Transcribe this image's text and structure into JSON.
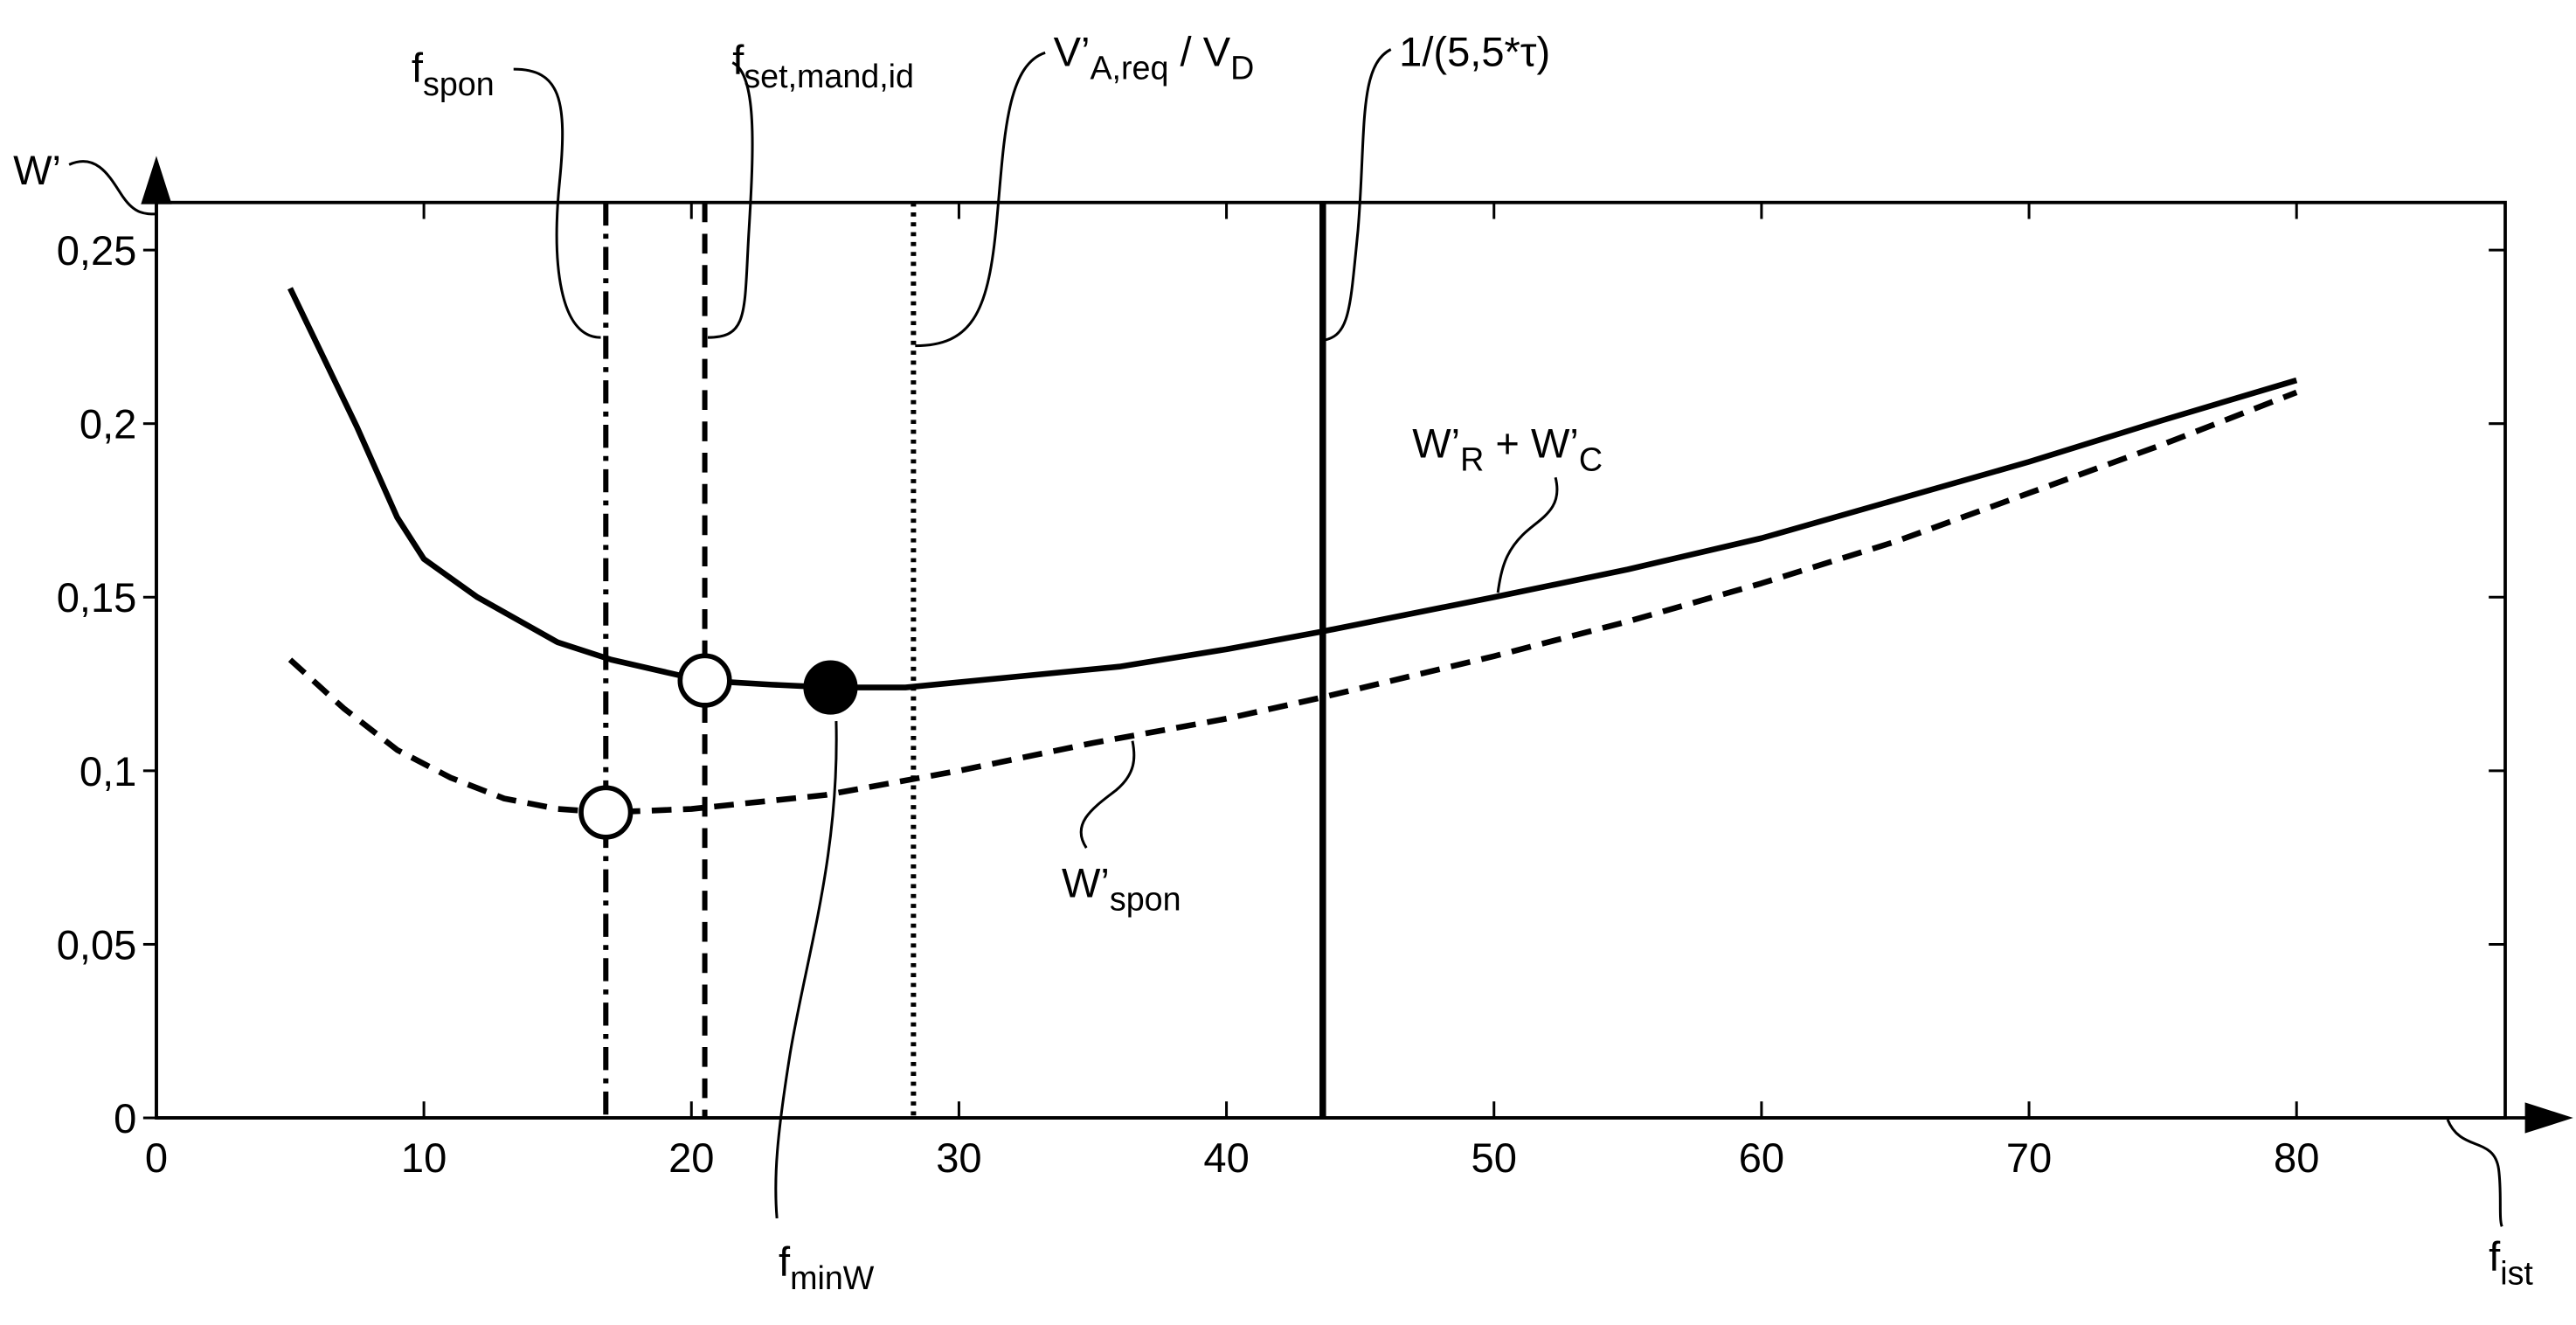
{
  "chart_data": {
    "type": "line",
    "xlim": [
      0,
      87.8
    ],
    "ylim": [
      0,
      0.2637
    ],
    "xticks": [
      0,
      10,
      20,
      30,
      40,
      50,
      60,
      70,
      80
    ],
    "yticks": [
      0,
      {
        "value": 0.05,
        "label": "0,05"
      },
      {
        "value": 0.1,
        "label": "0,1"
      },
      {
        "value": 0.15,
        "label": "0,15"
      },
      {
        "value": 0.2,
        "label": "0,2"
      },
      {
        "value": 0.25,
        "label": "0,25"
      }
    ],
    "x_label": [
      {
        "t": "f"
      },
      {
        "t": "ist",
        "sub": true
      }
    ],
    "y_label": [
      {
        "t": "W’"
      }
    ],
    "series": [
      {
        "name": [
          {
            "t": "W’"
          },
          {
            "t": "R",
            "sub": true
          },
          {
            "t": " + W’"
          },
          {
            "t": "C",
            "sub": true
          }
        ],
        "color": "#000000",
        "dash": "none",
        "x": [
          5,
          7.5,
          9,
          10,
          12,
          15,
          17,
          20.4,
          23,
          25.2,
          28,
          32,
          36,
          40,
          43.5,
          50,
          55,
          60,
          65,
          70,
          75,
          80
        ],
        "values": [
          0.239,
          0.199,
          0.173,
          0.161,
          0.15,
          0.137,
          0.132,
          0.126,
          0.1248,
          0.124,
          0.124,
          0.127,
          0.13,
          0.135,
          0.14,
          0.15,
          0.158,
          0.167,
          0.178,
          0.189,
          0.201,
          0.2125
        ]
      },
      {
        "name": [
          {
            "t": "W’"
          },
          {
            "t": "spon",
            "sub": true
          }
        ],
        "color": "#000000",
        "dash": "dashed",
        "x": [
          5,
          7,
          9,
          11,
          13,
          15,
          16.8,
          20,
          25,
          30,
          35,
          40,
          43.5,
          50,
          55,
          60,
          65,
          70,
          75,
          80
        ],
        "values": [
          0.132,
          0.118,
          0.106,
          0.098,
          0.092,
          0.089,
          0.088,
          0.089,
          0.093,
          0.1,
          0.108,
          0.115,
          0.121,
          0.133,
          0.143,
          0.154,
          0.166,
          0.18,
          0.194,
          0.209
        ]
      }
    ],
    "vlines": [
      {
        "x": 16.8,
        "dash": "dashdot",
        "label": [
          {
            "t": "f"
          },
          {
            "t": "spon",
            "sub": true
          }
        ]
      },
      {
        "x": 20.5,
        "dash": "dashed",
        "label": [
          {
            "t": "f"
          },
          {
            "t": "set,mand,id",
            "sub": true
          }
        ]
      },
      {
        "x": 28.3,
        "dash": "dotted",
        "label": [
          {
            "t": "V’"
          },
          {
            "t": "A,req",
            "sub": true
          },
          {
            "t": " / V"
          },
          {
            "t": "D",
            "sub": true
          }
        ]
      },
      {
        "x": 43.6,
        "dash": "none",
        "label": [
          {
            "t": "1/(5,5*τ)"
          }
        ]
      }
    ],
    "markers": [
      {
        "x": 20.5,
        "y": 0.126,
        "fill": "open"
      },
      {
        "x": 16.8,
        "y": 0.088,
        "fill": "open"
      },
      {
        "x": 25.2,
        "y": 0.124,
        "fill": "filled",
        "label": [
          {
            "t": "f"
          },
          {
            "t": "minW",
            "sub": true
          }
        ]
      }
    ]
  }
}
